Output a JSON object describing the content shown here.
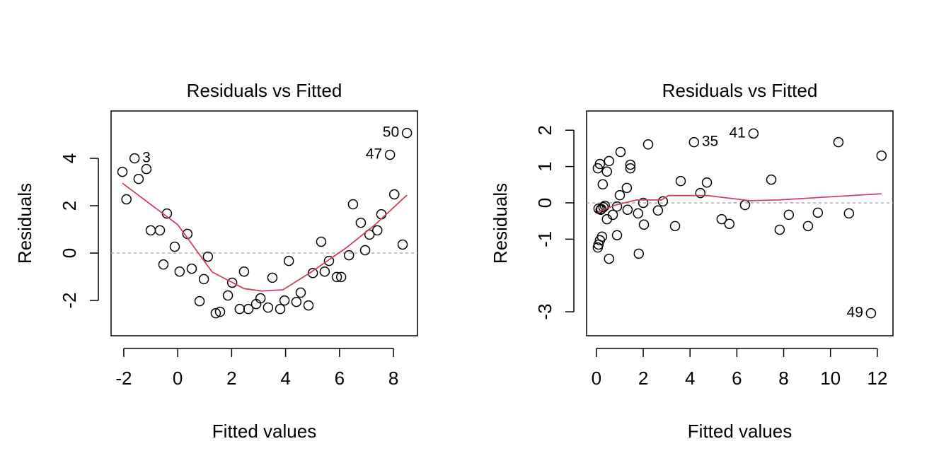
{
  "chart_data": [
    {
      "type": "scatter",
      "title": "Residuals vs Fitted",
      "x_label": "Fitted values",
      "y_label": "Residuals",
      "xlim": [
        -2.47,
        8.89
      ],
      "ylim": [
        -3.49,
        6.0
      ],
      "xticks": [
        -2,
        0,
        2,
        4,
        6,
        8
      ],
      "yticks": [
        -2,
        0,
        2,
        4
      ],
      "reference_line": 0,
      "point_color": "#000000",
      "smooth_color": "#d0405a",
      "x": [
        -2.05,
        -1.9,
        -1.6,
        -1.45,
        -1.16,
        -1.0,
        -0.66,
        -0.53,
        -0.4,
        -0.11,
        0.07,
        0.36,
        0.52,
        0.81,
        0.97,
        1.12,
        1.41,
        1.57,
        1.86,
        2.02,
        2.3,
        2.46,
        2.62,
        2.91,
        3.07,
        3.35,
        3.51,
        3.8,
        3.96,
        4.12,
        4.4,
        4.56,
        4.85,
        5.01,
        5.32,
        5.45,
        5.61,
        5.9,
        6.06,
        6.35,
        6.5,
        6.79,
        6.95,
        7.11,
        7.4,
        7.55,
        7.87,
        8.03,
        8.34,
        8.5
      ],
      "y": [
        3.43,
        2.27,
        4.0,
        3.13,
        3.55,
        0.96,
        0.96,
        -0.48,
        1.67,
        0.27,
        -0.78,
        0.81,
        -0.66,
        -2.03,
        -1.1,
        -0.15,
        -2.54,
        -2.48,
        -1.79,
        -1.25,
        -2.36,
        -0.78,
        -2.36,
        -2.15,
        -1.91,
        -2.3,
        -1.04,
        -2.36,
        -2.0,
        -0.33,
        -2.06,
        -1.67,
        -2.21,
        -0.84,
        0.48,
        -0.78,
        -0.33,
        -1.01,
        -1.01,
        -0.09,
        2.06,
        1.28,
        0.12,
        0.78,
        0.96,
        1.64,
        4.15,
        2.48,
        0.36,
        5.07
      ],
      "point_labels": [
        null,
        null,
        "3",
        null,
        null,
        null,
        null,
        null,
        null,
        null,
        null,
        null,
        null,
        null,
        null,
        null,
        null,
        null,
        null,
        null,
        null,
        null,
        null,
        null,
        null,
        null,
        null,
        null,
        null,
        null,
        null,
        null,
        null,
        null,
        null,
        null,
        null,
        null,
        null,
        null,
        null,
        null,
        null,
        null,
        null,
        null,
        "47",
        null,
        null,
        "50"
      ],
      "smooth_x": [
        -2.05,
        0.0,
        1.28,
        2.46,
        3.12,
        3.9,
        4.95,
        6.27,
        7.32,
        8.5
      ],
      "smooth_y": [
        2.95,
        1.2,
        -0.8,
        -1.5,
        -1.6,
        -1.55,
        -0.8,
        0.24,
        1.2,
        2.45
      ]
    },
    {
      "type": "scatter",
      "title": "Residuals vs Fitted",
      "x_label": "Fitted values",
      "y_label": "Residuals",
      "xlim": [
        -0.42,
        12.67
      ],
      "ylim": [
        -3.66,
        2.53
      ],
      "xticks": [
        0,
        2,
        4,
        6,
        8,
        10,
        12
      ],
      "yticks": [
        -3,
        -1,
        0,
        1,
        2
      ],
      "reference_line": 0,
      "point_color": "#000000",
      "smooth_color": "#d0405a",
      "x": [
        0.06,
        0.09,
        0.09,
        0.06,
        0.15,
        0.15,
        0.24,
        0.18,
        0.3,
        0.27,
        0.36,
        0.45,
        0.45,
        0.54,
        0.54,
        0.7,
        0.88,
        0.88,
        1.0,
        1.03,
        1.3,
        1.33,
        1.45,
        1.45,
        1.78,
        1.81,
        2.0,
        2.03,
        2.21,
        2.63,
        2.84,
        3.36,
        3.6,
        4.17,
        4.44,
        4.72,
        5.35,
        5.68,
        6.35,
        6.71,
        7.47,
        7.83,
        8.22,
        9.04,
        9.46,
        10.34,
        10.79,
        11.73,
        12.18,
        0.21
      ],
      "y": [
        -1.23,
        -1.15,
        -0.16,
        0.95,
        1.07,
        -1.03,
        -0.93,
        -0.19,
        -0.12,
        0.51,
        -0.08,
        0.86,
        -0.45,
        1.15,
        -1.54,
        -0.33,
        -0.89,
        -0.1,
        0.21,
        1.4,
        0.41,
        -0.19,
        1.05,
        0.95,
        -0.29,
        -1.4,
        0.0,
        -0.6,
        1.61,
        -0.21,
        0.04,
        -0.64,
        0.6,
        1.67,
        0.27,
        0.56,
        -0.45,
        -0.58,
        -0.06,
        1.91,
        0.64,
        -0.74,
        -0.33,
        -0.64,
        -0.27,
        1.67,
        -0.29,
        -3.04,
        1.3,
        -0.17
      ],
      "point_labels": [
        null,
        null,
        null,
        null,
        null,
        null,
        null,
        null,
        null,
        null,
        null,
        null,
        null,
        null,
        null,
        null,
        null,
        null,
        null,
        null,
        null,
        null,
        null,
        null,
        null,
        null,
        null,
        null,
        null,
        null,
        null,
        null,
        null,
        "35",
        null,
        null,
        null,
        null,
        null,
        "41",
        null,
        null,
        null,
        null,
        null,
        null,
        null,
        "49",
        null,
        null
      ],
      "smooth_x": [
        0.06,
        0.82,
        1.72,
        2.78,
        3.08,
        3.54,
        4.75,
        6.56,
        7.77,
        12.18
      ],
      "smooth_y": [
        -0.25,
        -0.06,
        0.08,
        0.08,
        0.2,
        0.2,
        0.2,
        0.06,
        0.08,
        0.25
      ]
    }
  ]
}
